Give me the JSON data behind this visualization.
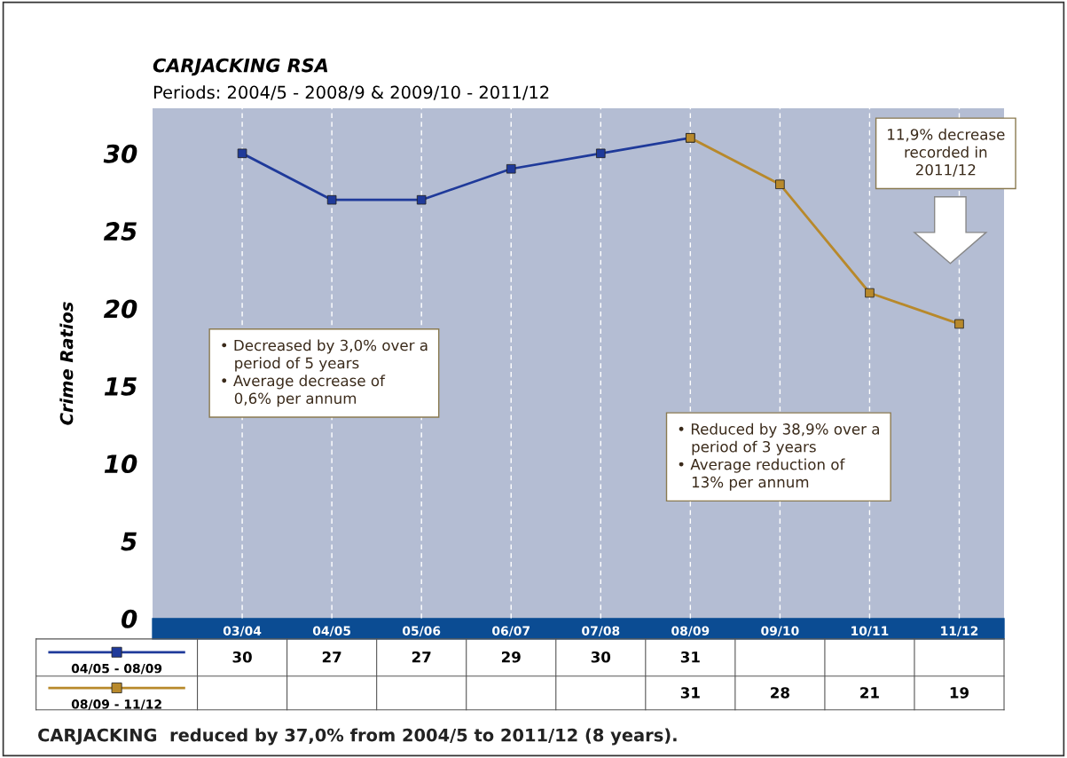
{
  "chart_data": {
    "type": "line",
    "title": "CARJACKING RSA",
    "subtitle": "Periods: 2004/5 - 2008/9 & 2009/10 - 2011/12",
    "ylabel": "Crime Ratios",
    "categories": [
      "03/04",
      "04/05",
      "05/06",
      "06/07",
      "07/08",
      "08/09",
      "09/10",
      "10/11",
      "11/12"
    ],
    "series": [
      {
        "name": "04/05 - 08/09",
        "color": "#1f3a9a",
        "values": [
          30,
          27,
          27,
          29,
          30,
          31,
          null,
          null,
          null
        ]
      },
      {
        "name": "08/09 - 11/12",
        "color": "#b8892b",
        "values": [
          null,
          null,
          null,
          null,
          null,
          31,
          28,
          21,
          19
        ]
      }
    ],
    "ylim": [
      0,
      32.9
    ],
    "yticks": [
      0,
      5,
      10,
      15,
      20,
      25,
      30
    ],
    "grid": "x",
    "marker": "square",
    "line_style": "solid",
    "data_labels": true,
    "legend": "bottom",
    "annotations": [
      "• Decreased by 3,0% over a\n   period of 5 years\n• Average decrease of\n   0,6% per annum",
      "• Reduced by 38,9% over a\n   period of 3 years\n• Average reduction of\n   13% per annum",
      "11,9% decrease\nrecorded in\n2011/12",
      "CARJACKING  reduced by 37,0% from 2004/5 to 2011/12 (8 years)."
    ]
  }
}
